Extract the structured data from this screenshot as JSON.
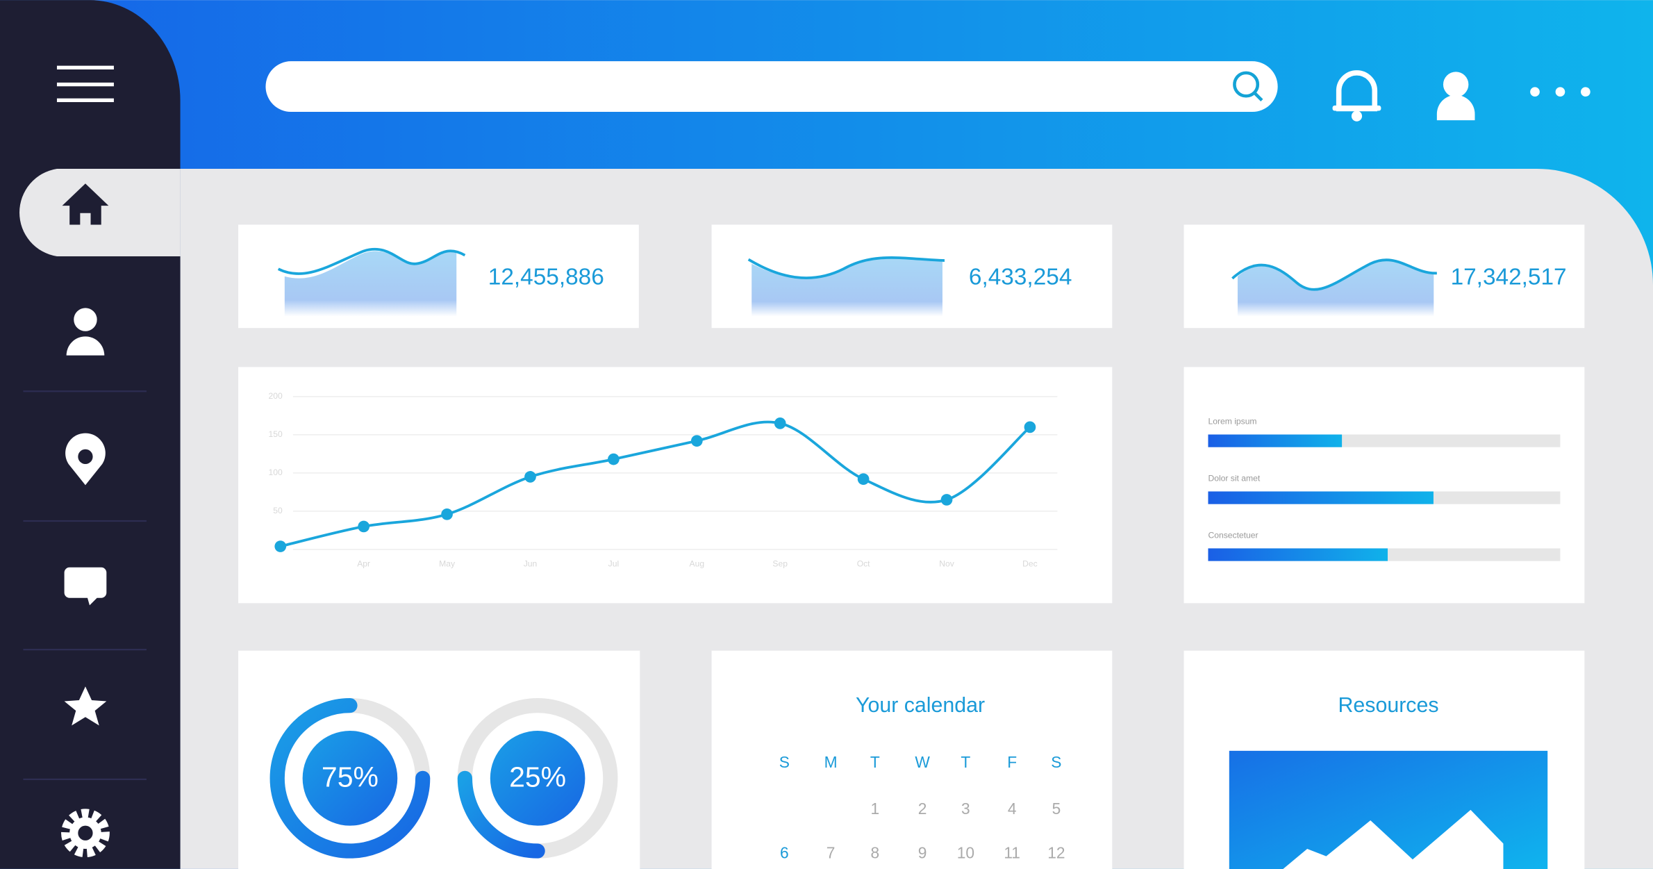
{
  "stats": [
    "12,455,886",
    "6,433,254",
    "17,342,517"
  ],
  "chart_data": {
    "type": "line",
    "categories": [
      null,
      "Apr",
      "May",
      "Jun",
      "Jul",
      "Aug",
      "Sep",
      "Oct",
      "Nov",
      "Dec"
    ],
    "values": [
      4,
      30,
      46,
      95,
      118,
      142,
      165,
      92,
      65,
      160
    ],
    "color": "#1aa6dc",
    "ylim": [
      0,
      200
    ],
    "yticks": [
      0,
      50,
      100,
      150,
      200
    ],
    "grid": true
  },
  "progress": [
    {
      "label": "Lorem ipsum",
      "value": 38
    },
    {
      "label": "Dolor sit amet",
      "value": 64
    },
    {
      "label": "Consectetuer",
      "value": 51
    }
  ],
  "donuts": [
    {
      "value": 75,
      "label": "75%"
    },
    {
      "value": 25,
      "label": "25%"
    }
  ],
  "calendar": {
    "title": "Your calendar",
    "weekdays": [
      "S",
      "M",
      "T",
      "W",
      "T",
      "F",
      "S"
    ],
    "weeks": [
      [
        null,
        null,
        1,
        2,
        3,
        4,
        5
      ],
      [
        6,
        7,
        8,
        9,
        10,
        11,
        12
      ]
    ]
  },
  "resources": {
    "title": "Resources"
  }
}
